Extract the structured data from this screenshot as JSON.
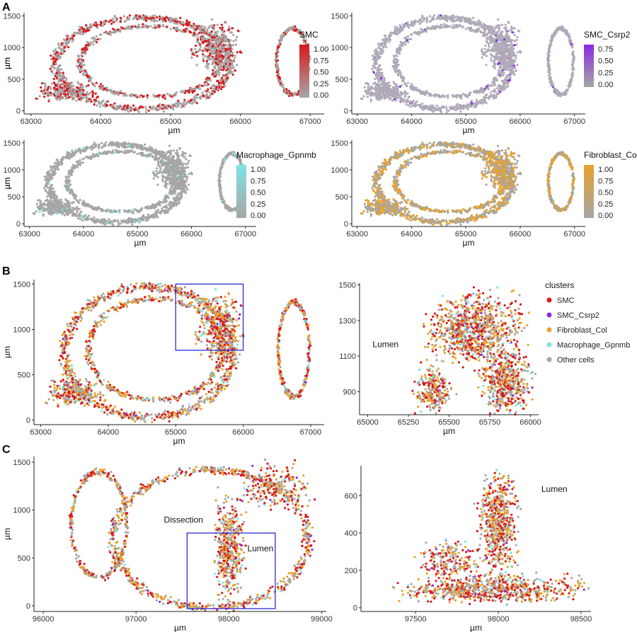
{
  "panel_letters": [
    "A",
    "B",
    "C"
  ],
  "colors": {
    "grey": "#a6a6a6",
    "smc": "#d7191c",
    "smc_csrp2": "#8a2be2",
    "fibroblast_col": "#e8a22b",
    "macrophage_gpnmb": "#7fe3e3",
    "box": "#2b2bd9"
  },
  "chart_data": [
    {
      "id": "A1",
      "type": "scatter",
      "xlabel": "µm",
      "ylabel": "µm",
      "xlim": [
        62900,
        67200
      ],
      "ylim": [
        -50,
        1550
      ],
      "xticks": [
        63000,
        64000,
        65000,
        66000,
        67000
      ],
      "yticks": [
        0,
        500,
        1000,
        1500
      ],
      "legend": {
        "kind": "gradient",
        "title": "SMC",
        "low": "#a6a6a6",
        "high": "#d7191c",
        "ticks": [
          "1.00",
          "0.75",
          "0.50",
          "0.25",
          "0.00"
        ]
      },
      "tissue": "ring1",
      "point_color": "#a6a6a6",
      "highlight_color": "#d7191c",
      "highlight_density": 0.35
    },
    {
      "id": "A2",
      "type": "scatter",
      "xlabel": "µm",
      "ylabel": "µm",
      "xlim": [
        62900,
        67200
      ],
      "ylim": [
        -50,
        1550
      ],
      "xticks": [
        63000,
        64000,
        65000,
        66000,
        67000
      ],
      "yticks": [
        0,
        500,
        1000,
        1500
      ],
      "legend": {
        "kind": "gradient",
        "title": "SMC_Csrp2",
        "low": "#a6a6a6",
        "high": "#8a2be2",
        "ticks": [
          "0.75",
          "0.50",
          "0.25",
          "0.00"
        ]
      },
      "tissue": "ring1",
      "point_color": "#b0aab8",
      "highlight_color": "#8a2be2",
      "highlight_density": 0.03
    },
    {
      "id": "A3",
      "type": "scatter",
      "xlabel": "µm",
      "ylabel": "µm",
      "xlim": [
        62900,
        67200
      ],
      "ylim": [
        -50,
        1550
      ],
      "xticks": [
        63000,
        64000,
        65000,
        66000,
        67000
      ],
      "yticks": [
        0,
        500,
        1000,
        1500
      ],
      "legend": {
        "kind": "gradient",
        "title": "Macrophage_Gpnmb",
        "low": "#a6a6a6",
        "high": "#7fe3e3",
        "ticks": [
          "1.00",
          "0.75",
          "0.50",
          "0.25",
          "0.00"
        ]
      },
      "tissue": "ring1",
      "point_color": "#a6a6a6",
      "highlight_color": "#7fe3e3",
      "highlight_density": 0.04
    },
    {
      "id": "A4",
      "type": "scatter",
      "xlabel": "µm",
      "ylabel": "µm",
      "xlim": [
        62900,
        67200
      ],
      "ylim": [
        -50,
        1550
      ],
      "xticks": [
        63000,
        64000,
        65000,
        66000,
        67000
      ],
      "yticks": [
        0,
        500,
        1000,
        1500
      ],
      "legend": {
        "kind": "gradient",
        "title": "Fibroblast_Col",
        "low": "#a6a6a6",
        "high": "#e8a22b",
        "ticks": [
          "1.00",
          "0.75",
          "0.50",
          "0.25",
          "0.00"
        ]
      },
      "tissue": "ring1",
      "point_color": "#a6a6a6",
      "highlight_color": "#e8a22b",
      "highlight_density": 0.45
    },
    {
      "id": "B1",
      "type": "scatter",
      "xlabel": "µm",
      "ylabel": "µm",
      "xlim": [
        62900,
        67200
      ],
      "ylim": [
        -50,
        1550
      ],
      "xticks": [
        63000,
        64000,
        65000,
        66000,
        67000
      ],
      "yticks": [
        0,
        500,
        1000,
        1500
      ],
      "tissue": "ring1",
      "mode": "clusters",
      "zoom_box": {
        "x": [
          65000,
          66000
        ],
        "y": [
          770,
          1500
        ]
      }
    },
    {
      "id": "B2",
      "type": "scatter",
      "xlabel": "µm",
      "ylabel": "",
      "xlim": [
        64950,
        66050
      ],
      "ylim": [
        770,
        1510
      ],
      "xticks": [
        65000,
        65250,
        65500,
        65750,
        66000
      ],
      "yticks": [
        900,
        1100,
        1300,
        1500
      ],
      "tissue": "zoomB",
      "mode": "clusters",
      "annotations": [
        {
          "text": "Lumen",
          "x": 65030,
          "y": 1150
        }
      ],
      "legend": {
        "kind": "categorical",
        "title": "clusters",
        "items": [
          {
            "label": "SMC",
            "color": "#d7191c"
          },
          {
            "label": "SMC_Csrp2",
            "color": "#8a2be2"
          },
          {
            "label": "Fibroblast_Col",
            "color": "#e8a22b"
          },
          {
            "label": "Macrophage_Gpnmb",
            "color": "#7fe3e3"
          },
          {
            "label": "Other cells",
            "color": "#a6a6a6"
          }
        ]
      }
    },
    {
      "id": "C1",
      "type": "scatter",
      "xlabel": "µm",
      "ylabel": "µm",
      "xlim": [
        95900,
        99050
      ],
      "ylim": [
        -60,
        1560
      ],
      "xticks": [
        96000,
        97000,
        98000,
        99000
      ],
      "yticks": [
        0,
        500,
        1000,
        1500
      ],
      "tissue": "ringC",
      "mode": "clusters",
      "annotations": [
        {
          "text": "Dissection",
          "x": 97300,
          "y": 870
        },
        {
          "text": "Lumen",
          "x": 98200,
          "y": 570
        }
      ],
      "zoom_box": {
        "x": [
          97550,
          98500
        ],
        "y": [
          -30,
          760
        ]
      }
    },
    {
      "id": "C2",
      "type": "scatter",
      "xlabel": "µm",
      "ylabel": "",
      "xlim": [
        97170,
        98560
      ],
      "ylim": [
        -20,
        760
      ],
      "xticks": [
        97500,
        98000,
        98500
      ],
      "yticks": [
        0,
        200,
        400,
        600
      ],
      "tissue": "zoomC",
      "mode": "clusters",
      "annotations": [
        {
          "text": "Lumen",
          "x": 98260,
          "y": 620
        }
      ]
    }
  ]
}
